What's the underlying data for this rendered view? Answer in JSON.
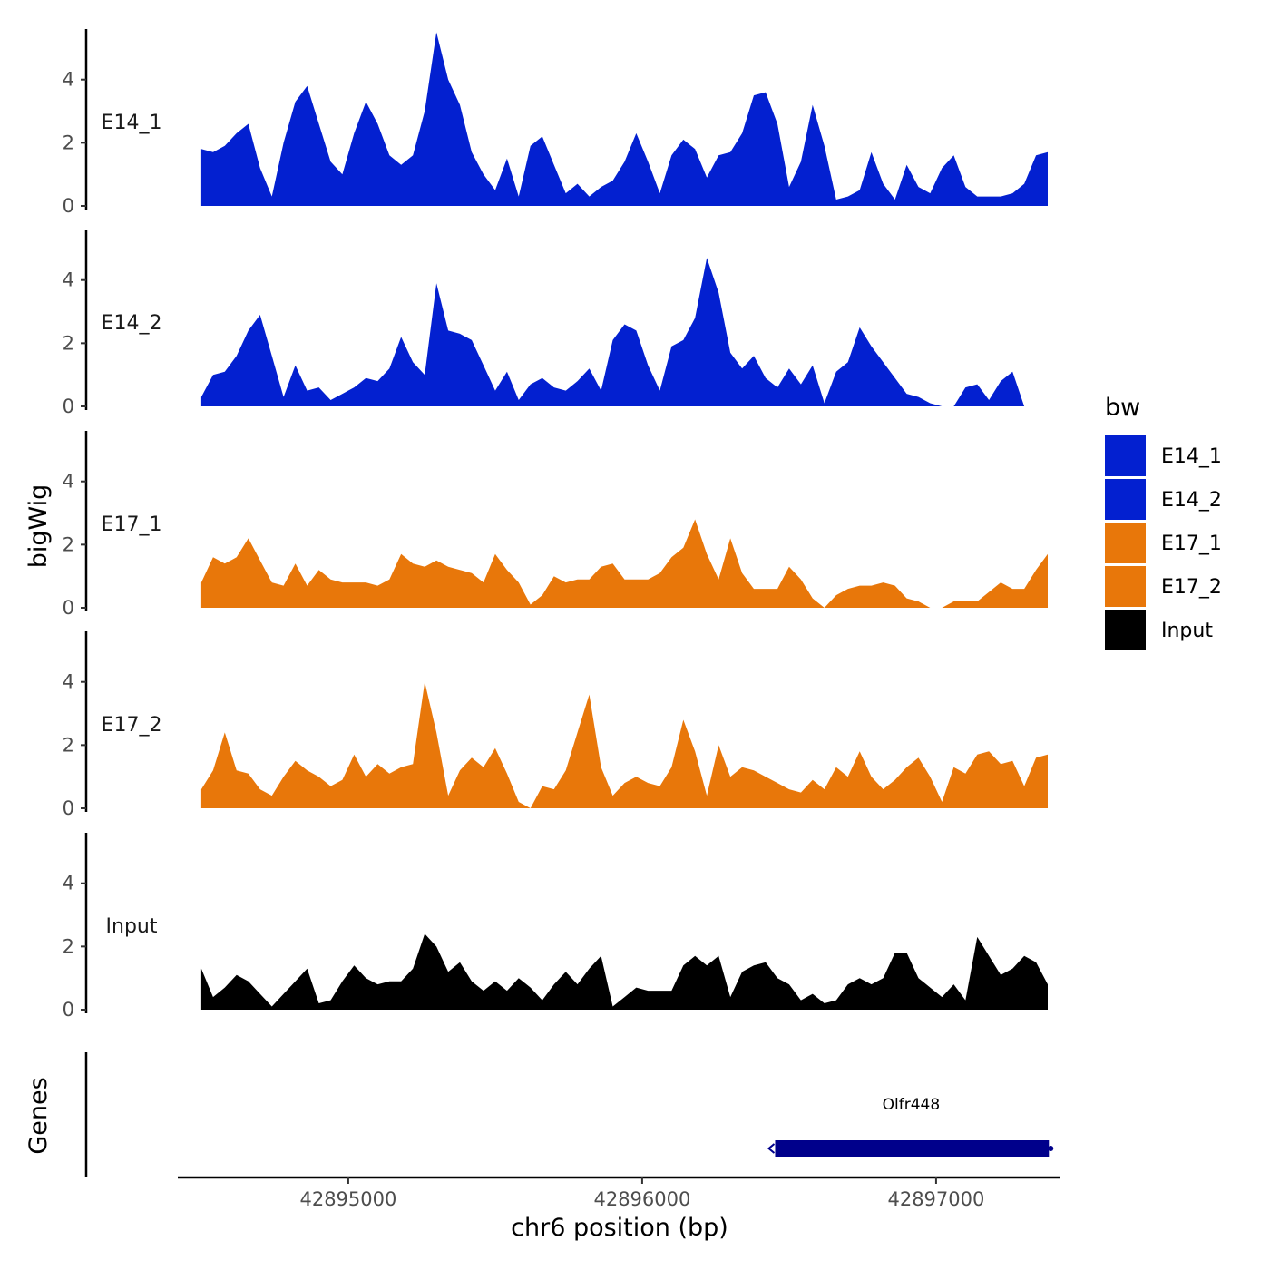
{
  "chart_data": {
    "type": "area",
    "ylabel": "bigWig",
    "xlabel": "chr6 position (bp)",
    "genes_label": "Genes",
    "xlim": [
      42894420,
      42897420
    ],
    "ylim": [
      0,
      5.6
    ],
    "y_ticks": [
      0,
      2,
      4
    ],
    "x_ticks": [
      42895000,
      42896000,
      42897000
    ],
    "legend": {
      "title": "bw",
      "entries": [
        {
          "label": "E14_1",
          "color": "#0320d0"
        },
        {
          "label": "E14_2",
          "color": "#0320d0"
        },
        {
          "label": "E17_1",
          "color": "#e8770a"
        },
        {
          "label": "E17_2",
          "color": "#e8770a"
        },
        {
          "label": "Input",
          "color": "#000000"
        }
      ]
    },
    "tracks": [
      {
        "name": "E14_1",
        "color": "#0320d0",
        "x": [
          42894500,
          42894540,
          42894580,
          42894620,
          42894660,
          42894700,
          42894740,
          42894780,
          42894820,
          42894860,
          42894900,
          42894940,
          42894980,
          42895020,
          42895060,
          42895100,
          42895140,
          42895180,
          42895220,
          42895260,
          42895300,
          42895340,
          42895380,
          42895420,
          42895460,
          42895500,
          42895540,
          42895580,
          42895620,
          42895660,
          42895700,
          42895740,
          42895780,
          42895820,
          42895860,
          42895900,
          42895940,
          42895980,
          42896020,
          42896060,
          42896100,
          42896140,
          42896180,
          42896220,
          42896260,
          42896300,
          42896340,
          42896380,
          42896420,
          42896460,
          42896500,
          42896540,
          42896580,
          42896620,
          42896660,
          42896700,
          42896740,
          42896780,
          42896820,
          42896860,
          42896900,
          42896940,
          42896980,
          42897020,
          42897060,
          42897100,
          42897140,
          42897180,
          42897220,
          42897260,
          42897300,
          42897340,
          42897380
        ],
        "y": [
          1.8,
          1.7,
          1.9,
          2.3,
          2.6,
          1.2,
          0.3,
          2.0,
          3.3,
          3.8,
          2.6,
          1.4,
          1.0,
          2.3,
          3.3,
          2.6,
          1.6,
          1.3,
          1.6,
          3.0,
          5.5,
          4.0,
          3.2,
          1.7,
          1.0,
          0.5,
          1.5,
          0.3,
          1.9,
          2.2,
          1.3,
          0.4,
          0.7,
          0.3,
          0.6,
          0.8,
          1.4,
          2.3,
          1.4,
          0.4,
          1.6,
          2.1,
          1.8,
          0.9,
          1.6,
          1.7,
          2.3,
          3.5,
          3.6,
          2.6,
          0.6,
          1.4,
          3.2,
          1.9,
          0.2,
          0.3,
          0.5,
          1.7,
          0.7,
          0.2,
          1.3,
          0.6,
          0.4,
          1.2,
          1.6,
          0.6,
          0.3,
          0.3,
          0.3,
          0.4,
          0.7,
          1.6,
          1.7
        ]
      },
      {
        "name": "E14_2",
        "color": "#0320d0",
        "x": [
          42894500,
          42894540,
          42894580,
          42894620,
          42894660,
          42894700,
          42894740,
          42894780,
          42894820,
          42894860,
          42894900,
          42894940,
          42894980,
          42895020,
          42895060,
          42895100,
          42895140,
          42895180,
          42895220,
          42895260,
          42895300,
          42895340,
          42895380,
          42895420,
          42895460,
          42895500,
          42895540,
          42895580,
          42895620,
          42895660,
          42895700,
          42895740,
          42895780,
          42895820,
          42895860,
          42895900,
          42895940,
          42895980,
          42896020,
          42896060,
          42896100,
          42896140,
          42896180,
          42896220,
          42896260,
          42896300,
          42896340,
          42896380,
          42896420,
          42896460,
          42896500,
          42896540,
          42896580,
          42896620,
          42896660,
          42896700,
          42896740,
          42896780,
          42896820,
          42896860,
          42896900,
          42896940,
          42896980,
          42897020,
          42897060,
          42897100,
          42897140,
          42897180,
          42897220,
          42897260,
          42897300,
          42897340,
          42897380
        ],
        "y": [
          0.3,
          1.0,
          1.1,
          1.6,
          2.4,
          2.9,
          1.6,
          0.3,
          1.3,
          0.5,
          0.6,
          0.2,
          0.4,
          0.6,
          0.9,
          0.8,
          1.2,
          2.2,
          1.4,
          1.0,
          3.9,
          2.4,
          2.3,
          2.1,
          1.3,
          0.5,
          1.1,
          0.2,
          0.7,
          0.9,
          0.6,
          0.5,
          0.8,
          1.2,
          0.5,
          2.1,
          2.6,
          2.4,
          1.3,
          0.5,
          1.9,
          2.1,
          2.8,
          4.7,
          3.6,
          1.7,
          1.2,
          1.6,
          0.9,
          0.6,
          1.2,
          0.7,
          1.3,
          0.1,
          1.1,
          1.4,
          2.5,
          1.9,
          1.4,
          0.9,
          0.4,
          0.3,
          0.1,
          0.0,
          0.0,
          0.6,
          0.7,
          0.2,
          0.8,
          1.1,
          0.0,
          0.0,
          0.0
        ]
      },
      {
        "name": "E17_1",
        "color": "#e8770a",
        "x": [
          42894500,
          42894540,
          42894580,
          42894620,
          42894660,
          42894700,
          42894740,
          42894780,
          42894820,
          42894860,
          42894900,
          42894940,
          42894980,
          42895020,
          42895060,
          42895100,
          42895140,
          42895180,
          42895220,
          42895260,
          42895300,
          42895340,
          42895380,
          42895420,
          42895460,
          42895500,
          42895540,
          42895580,
          42895620,
          42895660,
          42895700,
          42895740,
          42895780,
          42895820,
          42895860,
          42895900,
          42895940,
          42895980,
          42896020,
          42896060,
          42896100,
          42896140,
          42896180,
          42896220,
          42896260,
          42896300,
          42896340,
          42896380,
          42896420,
          42896460,
          42896500,
          42896540,
          42896580,
          42896620,
          42896660,
          42896700,
          42896740,
          42896780,
          42896820,
          42896860,
          42896900,
          42896940,
          42896980,
          42897020,
          42897060,
          42897100,
          42897140,
          42897180,
          42897220,
          42897260,
          42897300,
          42897340,
          42897380
        ],
        "y": [
          0.8,
          1.6,
          1.4,
          1.6,
          2.2,
          1.5,
          0.8,
          0.7,
          1.4,
          0.7,
          1.2,
          0.9,
          0.8,
          0.8,
          0.8,
          0.7,
          0.9,
          1.7,
          1.4,
          1.3,
          1.5,
          1.3,
          1.2,
          1.1,
          0.8,
          1.7,
          1.2,
          0.8,
          0.1,
          0.4,
          1.0,
          0.8,
          0.9,
          0.9,
          1.3,
          1.4,
          0.9,
          0.9,
          0.9,
          1.1,
          1.6,
          1.9,
          2.8,
          1.7,
          0.9,
          2.2,
          1.1,
          0.6,
          0.6,
          0.6,
          1.3,
          0.9,
          0.3,
          0.0,
          0.4,
          0.6,
          0.7,
          0.7,
          0.8,
          0.7,
          0.3,
          0.2,
          0.0,
          0.0,
          0.2,
          0.2,
          0.2,
          0.5,
          0.8,
          0.6,
          0.6,
          1.2,
          1.7
        ]
      },
      {
        "name": "E17_2",
        "color": "#e8770a",
        "x": [
          42894500,
          42894540,
          42894580,
          42894620,
          42894660,
          42894700,
          42894740,
          42894780,
          42894820,
          42894860,
          42894900,
          42894940,
          42894980,
          42895020,
          42895060,
          42895100,
          42895140,
          42895180,
          42895220,
          42895260,
          42895300,
          42895340,
          42895380,
          42895420,
          42895460,
          42895500,
          42895540,
          42895580,
          42895620,
          42895660,
          42895700,
          42895740,
          42895780,
          42895820,
          42895860,
          42895900,
          42895940,
          42895980,
          42896020,
          42896060,
          42896100,
          42896140,
          42896180,
          42896220,
          42896260,
          42896300,
          42896340,
          42896380,
          42896420,
          42896460,
          42896500,
          42896540,
          42896580,
          42896620,
          42896660,
          42896700,
          42896740,
          42896780,
          42896820,
          42896860,
          42896900,
          42896940,
          42896980,
          42897020,
          42897060,
          42897100,
          42897140,
          42897180,
          42897220,
          42897260,
          42897300,
          42897340,
          42897380
        ],
        "y": [
          0.6,
          1.2,
          2.4,
          1.2,
          1.1,
          0.6,
          0.4,
          1.0,
          1.5,
          1.2,
          1.0,
          0.7,
          0.9,
          1.7,
          1.0,
          1.4,
          1.1,
          1.3,
          1.4,
          4.0,
          2.4,
          0.4,
          1.2,
          1.6,
          1.3,
          1.9,
          1.1,
          0.2,
          0.0,
          0.7,
          0.6,
          1.2,
          2.4,
          3.6,
          1.3,
          0.4,
          0.8,
          1.0,
          0.8,
          0.7,
          1.3,
          2.8,
          1.8,
          0.4,
          2.0,
          1.0,
          1.3,
          1.2,
          1.0,
          0.8,
          0.6,
          0.5,
          0.9,
          0.6,
          1.3,
          1.0,
          1.8,
          1.0,
          0.6,
          0.9,
          1.3,
          1.6,
          1.0,
          0.2,
          1.3,
          1.1,
          1.7,
          1.8,
          1.4,
          1.5,
          0.7,
          1.6,
          1.7
        ]
      },
      {
        "name": "Input",
        "color": "#000000",
        "x": [
          42894500,
          42894540,
          42894580,
          42894620,
          42894660,
          42894700,
          42894740,
          42894780,
          42894820,
          42894860,
          42894900,
          42894940,
          42894980,
          42895020,
          42895060,
          42895100,
          42895140,
          42895180,
          42895220,
          42895260,
          42895300,
          42895340,
          42895380,
          42895420,
          42895460,
          42895500,
          42895540,
          42895580,
          42895620,
          42895660,
          42895700,
          42895740,
          42895780,
          42895820,
          42895860,
          42895900,
          42895940,
          42895980,
          42896020,
          42896060,
          42896100,
          42896140,
          42896180,
          42896220,
          42896260,
          42896300,
          42896340,
          42896380,
          42896420,
          42896460,
          42896500,
          42896540,
          42896580,
          42896620,
          42896660,
          42896700,
          42896740,
          42896780,
          42896820,
          42896860,
          42896900,
          42896940,
          42896980,
          42897020,
          42897060,
          42897100,
          42897140,
          42897180,
          42897220,
          42897260,
          42897300,
          42897340,
          42897380
        ],
        "y": [
          1.3,
          0.4,
          0.7,
          1.1,
          0.9,
          0.5,
          0.1,
          0.5,
          0.9,
          1.3,
          0.2,
          0.3,
          0.9,
          1.4,
          1.0,
          0.8,
          0.9,
          0.9,
          1.3,
          2.4,
          2.0,
          1.2,
          1.5,
          0.9,
          0.6,
          0.9,
          0.6,
          1.0,
          0.7,
          0.3,
          0.8,
          1.2,
          0.8,
          1.3,
          1.7,
          0.1,
          0.4,
          0.7,
          0.6,
          0.6,
          0.6,
          1.4,
          1.7,
          1.4,
          1.7,
          0.4,
          1.2,
          1.4,
          1.5,
          1.0,
          0.8,
          0.3,
          0.5,
          0.2,
          0.3,
          0.8,
          1.0,
          0.8,
          1.0,
          1.8,
          1.8,
          1.0,
          0.7,
          0.4,
          0.8,
          0.3,
          2.3,
          1.7,
          1.1,
          1.3,
          1.7,
          1.5,
          0.8
        ]
      }
    ],
    "genes": [
      {
        "name": "Olfr448",
        "start": 42896440,
        "end": 42897390,
        "strand": "-",
        "color": "#00008b"
      }
    ]
  }
}
